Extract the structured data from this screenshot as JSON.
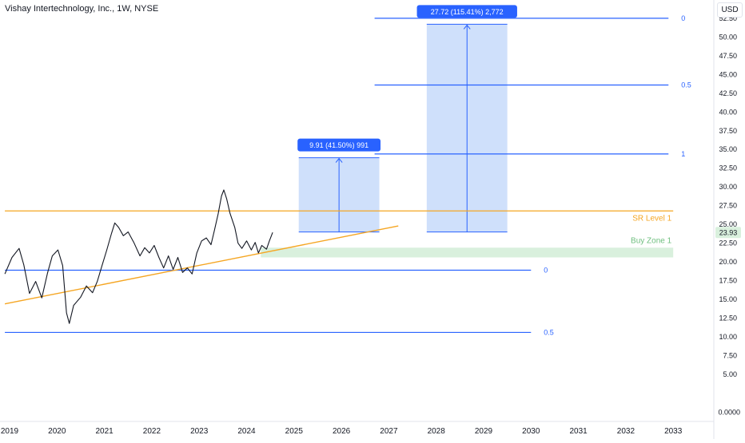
{
  "header": {
    "symbol_title": "Vishay Intertechnology, Inc., 1W, NYSE",
    "currency": "USD"
  },
  "chart_data": {
    "type": "line",
    "title": "Vishay Intertechnology, Inc., 1W, NYSE",
    "xlabel": "",
    "ylabel": "",
    "currency": "USD",
    "last_price": "23.93",
    "bottom_price_label": "0.0000",
    "y_ticks": [
      52.5,
      50.0,
      47.5,
      45.0,
      42.5,
      40.0,
      37.5,
      35.0,
      32.5,
      30.0,
      27.5,
      25.0,
      22.5,
      20.0,
      17.5,
      15.0,
      12.5,
      10.0,
      7.5,
      5.0
    ],
    "x_ticks": [
      "2019",
      "2020",
      "2021",
      "2022",
      "2023",
      "2024",
      "2025",
      "2026",
      "2027",
      "2028",
      "2029",
      "2030",
      "2031",
      "2032",
      "2033"
    ],
    "price_series": {
      "name": "",
      "points": [
        [
          2018.9,
          18.4
        ],
        [
          2019.05,
          20.6
        ],
        [
          2019.2,
          21.8
        ],
        [
          2019.3,
          19.6
        ],
        [
          2019.42,
          15.8
        ],
        [
          2019.55,
          17.4
        ],
        [
          2019.68,
          15.2
        ],
        [
          2019.8,
          18.5
        ],
        [
          2019.9,
          20.8
        ],
        [
          2020.02,
          21.6
        ],
        [
          2020.12,
          19.5
        ],
        [
          2020.2,
          13.2
        ],
        [
          2020.26,
          11.8
        ],
        [
          2020.35,
          14.2
        ],
        [
          2020.5,
          15.3
        ],
        [
          2020.62,
          16.8
        ],
        [
          2020.75,
          15.9
        ],
        [
          2020.85,
          17.4
        ],
        [
          2020.95,
          19.5
        ],
        [
          2021.05,
          21.6
        ],
        [
          2021.15,
          23.8
        ],
        [
          2021.22,
          25.2
        ],
        [
          2021.3,
          24.6
        ],
        [
          2021.4,
          23.5
        ],
        [
          2021.5,
          24.0
        ],
        [
          2021.62,
          22.6
        ],
        [
          2021.75,
          20.8
        ],
        [
          2021.85,
          21.9
        ],
        [
          2021.95,
          21.2
        ],
        [
          2022.05,
          22.2
        ],
        [
          2022.15,
          20.6
        ],
        [
          2022.25,
          19.2
        ],
        [
          2022.35,
          20.8
        ],
        [
          2022.45,
          19.0
        ],
        [
          2022.55,
          20.6
        ],
        [
          2022.65,
          18.6
        ],
        [
          2022.75,
          19.2
        ],
        [
          2022.85,
          18.4
        ],
        [
          2022.95,
          21.2
        ],
        [
          2023.05,
          22.8
        ],
        [
          2023.15,
          23.2
        ],
        [
          2023.25,
          22.3
        ],
        [
          2023.32,
          24.2
        ],
        [
          2023.4,
          26.4
        ],
        [
          2023.47,
          28.8
        ],
        [
          2023.52,
          29.6
        ],
        [
          2023.58,
          28.4
        ],
        [
          2023.65,
          26.5
        ],
        [
          2023.75,
          24.6
        ],
        [
          2023.82,
          22.5
        ],
        [
          2023.9,
          21.8
        ],
        [
          2024.0,
          22.8
        ],
        [
          2024.1,
          21.6
        ],
        [
          2024.18,
          22.6
        ],
        [
          2024.25,
          21.2
        ],
        [
          2024.32,
          22.2
        ],
        [
          2024.42,
          21.7
        ],
        [
          2024.48,
          22.8
        ],
        [
          2024.55,
          23.93
        ]
      ]
    },
    "lines": [
      {
        "label": "SR Level 1",
        "y": 26.8,
        "x_from": 2018.9,
        "x_to": 2033.0,
        "color": "#f5a623"
      },
      {
        "label": "0",
        "y": 18.9,
        "x_from": 2018.9,
        "x_to": 2030.0,
        "color": "#2962ff"
      },
      {
        "label": "0.5",
        "y": 10.6,
        "x_from": 2018.9,
        "x_to": 2030.0,
        "color": "#2962ff"
      },
      {
        "label": "1",
        "y": 34.4,
        "x_from": 2026.7,
        "x_to": 2032.9,
        "color": "#2962ff"
      },
      {
        "label": "0.5",
        "y": 43.6,
        "x_from": 2026.7,
        "x_to": 2032.9,
        "color": "#2962ff"
      },
      {
        "label": "0",
        "y": 52.5,
        "x_from": 2026.7,
        "x_to": 2032.9,
        "color": "#2962ff"
      }
    ],
    "trendline": {
      "x1": 2018.9,
      "y1": 14.4,
      "x2": 2027.2,
      "y2": 24.8,
      "color": "#f5a623"
    },
    "zones": [
      {
        "label": "Buy Zone 1",
        "x_from": 2024.3,
        "x_to": 2033.0,
        "y_from": 20.6,
        "y_to": 21.9,
        "color": "#d9f0dd"
      }
    ],
    "projections": [
      {
        "label": "9.91 (41.50%) 991",
        "x_from": 2025.1,
        "x_to": 2026.8,
        "y_from": 24.0,
        "y_to": 33.9
      },
      {
        "label": "27.72 (115.41%) 2,772",
        "x_from": 2027.8,
        "x_to": 2029.5,
        "y_from": 24.0,
        "y_to": 51.7
      }
    ],
    "grid": false,
    "legend": "none"
  }
}
